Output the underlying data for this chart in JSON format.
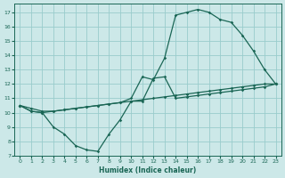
{
  "xlabel": "Humidex (Indice chaleur)",
  "bg_color": "#cce8e8",
  "grid_color": "#99cccc",
  "line_color": "#1a6655",
  "xlim": [
    -0.5,
    23.5
  ],
  "ylim": [
    7,
    17.6
  ],
  "yticks": [
    7,
    8,
    9,
    10,
    11,
    12,
    13,
    14,
    15,
    16,
    17
  ],
  "xticks": [
    0,
    1,
    2,
    3,
    4,
    5,
    6,
    7,
    8,
    9,
    10,
    11,
    12,
    13,
    14,
    15,
    16,
    17,
    18,
    19,
    20,
    21,
    22,
    23
  ],
  "series1_x": [
    0,
    1,
    2,
    3,
    4,
    5,
    6,
    7,
    8,
    9,
    10,
    11,
    12,
    13,
    14,
    15,
    16,
    17,
    18,
    19,
    20,
    21,
    22,
    23
  ],
  "series1_y": [
    10.5,
    10.1,
    10.0,
    10.1,
    10.2,
    10.3,
    10.4,
    10.5,
    10.6,
    10.7,
    11.0,
    12.5,
    12.3,
    13.8,
    16.8,
    17.0,
    17.2,
    17.0,
    16.5,
    16.3,
    15.4,
    14.3,
    13.0,
    12.0
  ],
  "series2_x": [
    0,
    1,
    2,
    3,
    4,
    5,
    6,
    7,
    8,
    9,
    10,
    11,
    12,
    13,
    14,
    15,
    16,
    17,
    18,
    19,
    20,
    21,
    22,
    23
  ],
  "series2_y": [
    10.5,
    10.3,
    10.1,
    10.1,
    10.2,
    10.3,
    10.4,
    10.5,
    10.6,
    10.7,
    10.8,
    10.9,
    11.0,
    11.1,
    11.2,
    11.3,
    11.4,
    11.5,
    11.6,
    11.7,
    11.8,
    11.9,
    12.0,
    12.0
  ],
  "series3_x": [
    0,
    1,
    2,
    3,
    4,
    5,
    6,
    7,
    8,
    9,
    10,
    11,
    12,
    13,
    14,
    15,
    16,
    17,
    18,
    19,
    20,
    21,
    22,
    23
  ],
  "series3_y": [
    10.5,
    10.1,
    10.0,
    9.0,
    8.5,
    7.7,
    7.4,
    7.3,
    8.5,
    9.5,
    10.8,
    10.8,
    12.4,
    12.5,
    11.0,
    11.1,
    11.2,
    11.3,
    11.4,
    11.5,
    11.6,
    11.7,
    11.8,
    12.0
  ]
}
